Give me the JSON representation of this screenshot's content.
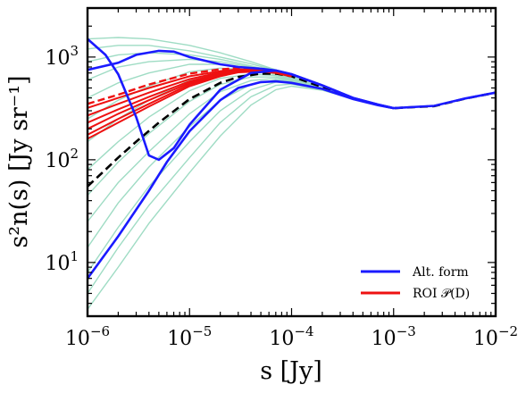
{
  "chart_data": {
    "type": "line",
    "title": "",
    "xlabel": "s [Jy]",
    "ylabel": "s²n(s) [Jy sr⁻¹]",
    "xscale": "log",
    "yscale": "log",
    "xlim": [
      1e-06,
      0.01
    ],
    "ylim": [
      3,
      3000
    ],
    "grid": false,
    "legend_position": "lower-right",
    "x_ticks": [
      {
        "value": 1e-06,
        "base": "10",
        "exp": "−6"
      },
      {
        "value": 1e-05,
        "base": "10",
        "exp": "−5"
      },
      {
        "value": 0.0001,
        "base": "10",
        "exp": "−4"
      },
      {
        "value": 0.001,
        "base": "10",
        "exp": "−3"
      },
      {
        "value": 0.01,
        "base": "10",
        "exp": "−2"
      }
    ],
    "y_ticks": [
      {
        "value": 10,
        "base": "10",
        "exp": "1"
      },
      {
        "value": 100,
        "base": "10",
        "exp": "2"
      },
      {
        "value": 1000,
        "base": "10",
        "exp": "3"
      }
    ],
    "background_curves": {
      "color": "#9fdcc4",
      "x": [
        1e-06,
        2e-06,
        4e-06,
        1e-05,
        2e-05,
        4e-05,
        7e-05,
        0.0001,
        0.0002,
        0.0004,
        0.0007,
        0.001,
        0.0025,
        0.005,
        0.01
      ],
      "curves": [
        [
          1500,
          1550,
          1500,
          1300,
          1100,
          900,
          750,
          650,
          500,
          390,
          340,
          318,
          335,
          395,
          450
        ],
        [
          1200,
          1300,
          1300,
          1150,
          1000,
          860,
          740,
          650,
          500,
          390,
          340,
          318,
          335,
          395,
          450
        ],
        [
          900,
          1050,
          1100,
          1050,
          950,
          820,
          720,
          640,
          500,
          390,
          340,
          318,
          335,
          395,
          450
        ],
        [
          600,
          800,
          900,
          950,
          900,
          800,
          710,
          640,
          500,
          390,
          340,
          318,
          335,
          395,
          450
        ],
        [
          400,
          560,
          700,
          850,
          850,
          780,
          700,
          630,
          500,
          390,
          340,
          318,
          335,
          395,
          450
        ],
        [
          250,
          380,
          520,
          720,
          780,
          750,
          690,
          630,
          500,
          390,
          340,
          318,
          335,
          395,
          450
        ],
        [
          150,
          250,
          380,
          600,
          700,
          720,
          680,
          620,
          500,
          390,
          340,
          318,
          335,
          395,
          450
        ],
        [
          80,
          150,
          260,
          470,
          620,
          680,
          660,
          610,
          500,
          390,
          340,
          318,
          335,
          395,
          450
        ],
        [
          45,
          95,
          180,
          370,
          540,
          640,
          640,
          600,
          500,
          390,
          340,
          318,
          335,
          395,
          450
        ],
        [
          25,
          60,
          120,
          280,
          460,
          590,
          620,
          590,
          500,
          390,
          340,
          318,
          335,
          395,
          450
        ],
        [
          14,
          38,
          85,
          210,
          380,
          540,
          600,
          580,
          495,
          390,
          340,
          318,
          335,
          395,
          450
        ],
        [
          8,
          22,
          55,
          150,
          300,
          480,
          570,
          565,
          490,
          390,
          340,
          318,
          335,
          395,
          450
        ],
        [
          5,
          14,
          36,
          105,
          230,
          410,
          530,
          545,
          485,
          390,
          340,
          318,
          335,
          395,
          450
        ],
        [
          3.5,
          9,
          24,
          75,
          170,
          340,
          480,
          520,
          475,
          390,
          340,
          318,
          335,
          395,
          450
        ]
      ]
    },
    "series": [
      {
        "name": "Alt. form",
        "color": "#1a1aff",
        "dash": "solid",
        "curves": [
          {
            "x": [
              1e-06,
              1.5e-06,
              2e-06,
              3e-06,
              4e-06,
              5e-06,
              7e-06,
              1e-05,
              2e-05,
              4e-05,
              7e-05,
              0.0001,
              0.0002,
              0.0004,
              0.0007,
              0.001,
              0.0025,
              0.005,
              0.01
            ],
            "y": [
              1500,
              1050,
              680,
              260,
              110,
              100,
              130,
              220,
              480,
              700,
              740,
              680,
              530,
              400,
              345,
              318,
              335,
              395,
              450
            ]
          },
          {
            "x": [
              1e-06,
              2e-06,
              3e-06,
              5e-06,
              7e-06,
              1e-05,
              2e-05,
              3e-05,
              5e-05,
              7e-05,
              0.0001,
              0.0002,
              0.0004,
              0.0007,
              0.001
            ],
            "y": [
              750,
              880,
              1050,
              1150,
              1130,
              1000,
              850,
              800,
              770,
              740,
              680,
              530,
              400,
              345,
              318
            ]
          },
          {
            "x": [
              1e-06,
              2e-06,
              4e-06,
              6e-06,
              1e-05,
              2e-05,
              3e-05,
              5e-05,
              7e-05,
              0.0001,
              0.0002,
              0.0004,
              0.0007,
              0.001
            ],
            "y": [
              7,
              18,
              50,
              95,
              190,
              380,
              500,
              570,
              580,
              560,
              490,
              390,
              340,
              318
            ]
          }
        ]
      },
      {
        "name": "ROI 𝒫(D)",
        "color": "#ee1111",
        "dash": "solid",
        "x": [
          1e-06,
          2e-06,
          4e-06,
          1e-05,
          2e-05,
          3e-05,
          5e-05,
          7e-05,
          0.0001
        ],
        "curves": [
          [
            320,
            400,
            500,
            650,
            730,
            760,
            750,
            720,
            660
          ],
          [
            270,
            350,
            450,
            610,
            710,
            750,
            745,
            715,
            655
          ],
          [
            230,
            310,
            410,
            580,
            690,
            740,
            740,
            712,
            652
          ],
          [
            200,
            280,
            380,
            560,
            680,
            730,
            735,
            710,
            650
          ],
          [
            175,
            250,
            350,
            540,
            665,
            720,
            730,
            705,
            648
          ],
          [
            160,
            230,
            330,
            520,
            650,
            710,
            725,
            700,
            645
          ]
        ],
        "dashed_curve": [
          350,
          430,
          540,
          690,
          760,
          780,
          760,
          725,
          660
        ]
      },
      {
        "name": "",
        "color": "#000000",
        "dash": "dashed",
        "x": [
          1e-06,
          1.5e-06,
          2e-06,
          3e-06,
          5e-06,
          1e-05,
          2e-05,
          3e-05,
          5e-05,
          7e-05,
          0.0001,
          0.0002,
          0.0004,
          0.0007,
          0.001,
          0.0025,
          0.005,
          0.01
        ],
        "y": [
          55,
          80,
          105,
          150,
          230,
          390,
          560,
          640,
          690,
          690,
          650,
          510,
          395,
          343,
          318,
          333,
          393,
          450
        ]
      }
    ],
    "legend": [
      {
        "label": "Alt. form",
        "color": "#1a1aff"
      },
      {
        "label": "ROI 𝒫(D)",
        "color": "#ee1111"
      }
    ]
  }
}
